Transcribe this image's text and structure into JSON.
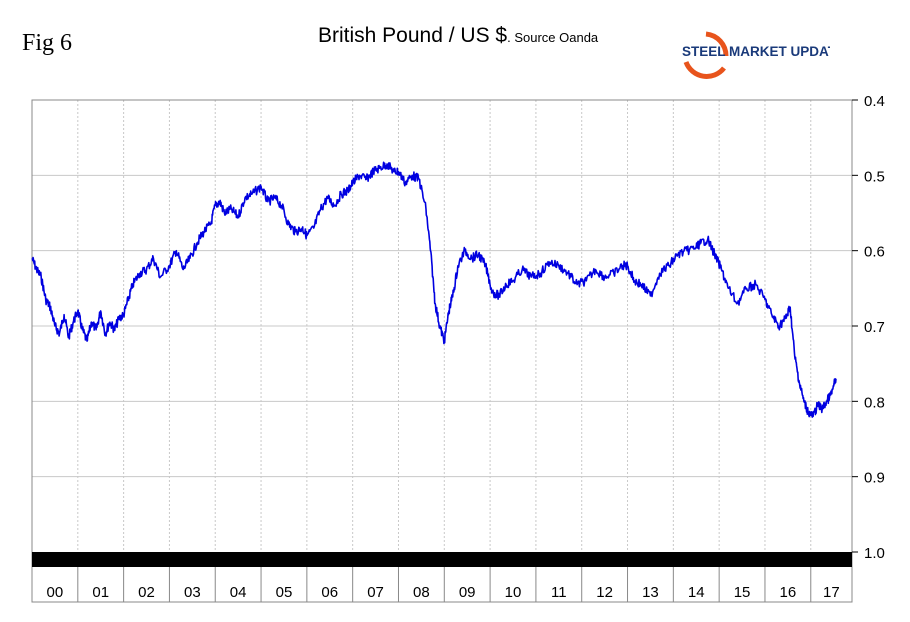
{
  "figure_label": "Fig 6",
  "logo_text": "STEEL MARKET UPDATE",
  "colors": {
    "line": "#0000e0",
    "grid": "#c8c8c8",
    "axis_bar": "#000000",
    "logo_steel": "#1a3a7a",
    "logo_accent": "#e8541c"
  },
  "chart_data": {
    "type": "line",
    "title": "British Pound / US $",
    "subtitle": ". Source Oanda",
    "xlabel": "",
    "ylabel": "",
    "y_inverted": true,
    "ylim": [
      0.4,
      1.0
    ],
    "xlim": [
      2000.0,
      2017.9
    ],
    "y_ticks": [
      "0.4",
      "0.5",
      "0.6",
      "0.7",
      "0.8",
      "0.9",
      "1.0"
    ],
    "x_tick_labels": [
      "00",
      "01",
      "02",
      "03",
      "04",
      "05",
      "06",
      "07",
      "08",
      "09",
      "10",
      "11",
      "12",
      "13",
      "14",
      "15",
      "16",
      "17"
    ],
    "grid": true,
    "series": [
      {
        "x": [
          2000.0,
          2000.1,
          2000.2,
          2000.3,
          2000.4,
          2000.5,
          2000.6,
          2000.7,
          2000.8,
          2000.9,
          2001.0,
          2001.1,
          2001.2,
          2001.3,
          2001.4,
          2001.5,
          2001.6,
          2001.7,
          2001.8,
          2001.9,
          2002.0,
          2002.1,
          2002.2,
          2002.35,
          2002.5,
          2002.65,
          2002.8,
          2003.0,
          2003.15,
          2003.3,
          2003.45,
          2003.6,
          2003.75,
          2003.9,
          2004.0,
          2004.1,
          2004.2,
          2004.35,
          2004.5,
          2004.65,
          2004.8,
          2005.0,
          2005.15,
          2005.3,
          2005.45,
          2005.6,
          2005.75,
          2005.9,
          2006.0,
          2006.15,
          2006.3,
          2006.45,
          2006.6,
          2006.75,
          2006.9,
          2007.0,
          2007.15,
          2007.3,
          2007.45,
          2007.6,
          2007.75,
          2007.9,
          2008.0,
          2008.15,
          2008.3,
          2008.45,
          2008.6,
          2008.7,
          2008.8,
          2008.9,
          2009.0,
          2009.1,
          2009.2,
          2009.3,
          2009.45,
          2009.6,
          2009.75,
          2009.9,
          2010.05,
          2010.2,
          2010.35,
          2010.5,
          2010.7,
          2010.9,
          2011.1,
          2011.3,
          2011.5,
          2011.7,
          2011.9,
          2012.1,
          2012.3,
          2012.5,
          2012.7,
          2012.9,
          2013.0,
          2013.15,
          2013.3,
          2013.5,
          2013.7,
          2013.9,
          2014.1,
          2014.3,
          2014.5,
          2014.6,
          2014.75,
          2014.9,
          2015.05,
          2015.2,
          2015.4,
          2015.6,
          2015.8,
          2016.0,
          2016.15,
          2016.3,
          2016.45,
          2016.55,
          2016.65,
          2016.75,
          2016.85,
          2016.95,
          2017.05,
          2017.15,
          2017.25,
          2017.35,
          2017.45,
          2017.55
        ],
        "y": [
          0.61,
          0.625,
          0.635,
          0.665,
          0.675,
          0.7,
          0.71,
          0.685,
          0.715,
          0.695,
          0.68,
          0.705,
          0.72,
          0.695,
          0.705,
          0.68,
          0.71,
          0.695,
          0.705,
          0.69,
          0.685,
          0.665,
          0.645,
          0.63,
          0.625,
          0.61,
          0.635,
          0.62,
          0.6,
          0.625,
          0.61,
          0.59,
          0.575,
          0.565,
          0.54,
          0.535,
          0.55,
          0.545,
          0.555,
          0.53,
          0.525,
          0.515,
          0.535,
          0.53,
          0.54,
          0.565,
          0.575,
          0.57,
          0.58,
          0.57,
          0.545,
          0.53,
          0.54,
          0.525,
          0.52,
          0.51,
          0.5,
          0.505,
          0.495,
          0.49,
          0.485,
          0.495,
          0.495,
          0.51,
          0.5,
          0.505,
          0.545,
          0.6,
          0.67,
          0.7,
          0.72,
          0.68,
          0.655,
          0.62,
          0.6,
          0.61,
          0.605,
          0.62,
          0.655,
          0.66,
          0.645,
          0.64,
          0.625,
          0.635,
          0.63,
          0.615,
          0.62,
          0.63,
          0.645,
          0.64,
          0.625,
          0.635,
          0.63,
          0.62,
          0.62,
          0.64,
          0.645,
          0.66,
          0.63,
          0.62,
          0.605,
          0.6,
          0.595,
          0.59,
          0.585,
          0.605,
          0.625,
          0.65,
          0.67,
          0.65,
          0.645,
          0.665,
          0.685,
          0.7,
          0.69,
          0.675,
          0.74,
          0.775,
          0.8,
          0.815,
          0.82,
          0.805,
          0.81,
          0.8,
          0.79,
          0.77
        ]
      }
    ]
  }
}
